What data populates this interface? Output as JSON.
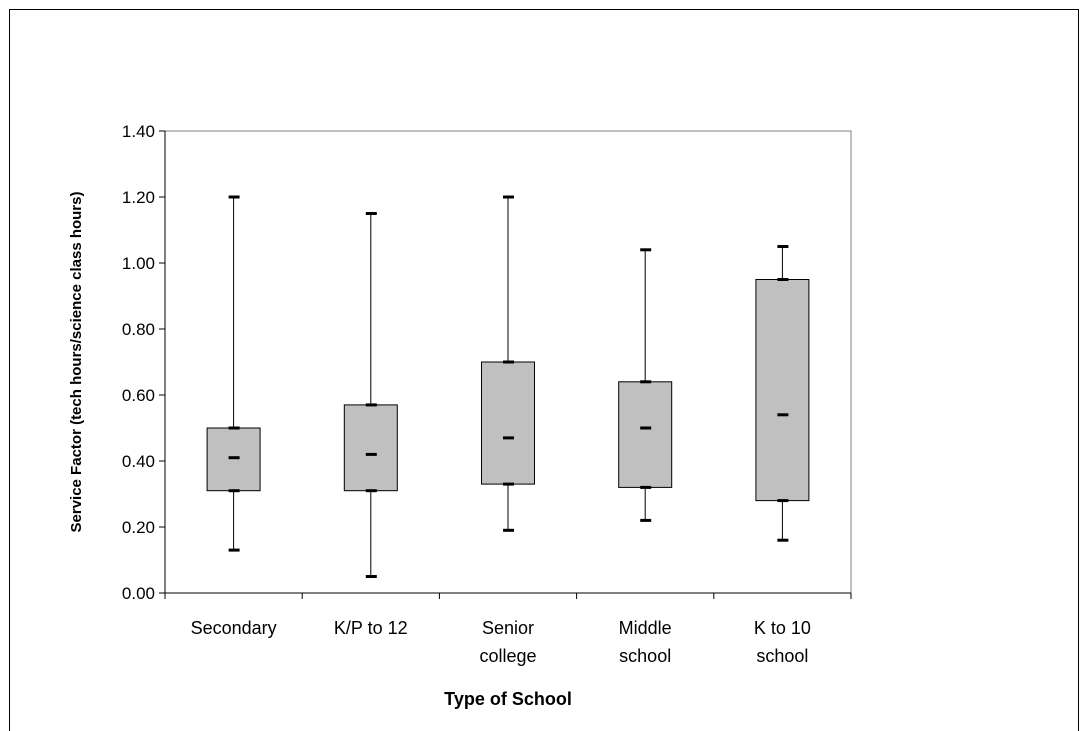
{
  "chart_data": {
    "type": "boxplot",
    "title": "",
    "xlabel": "Type of School",
    "ylabel": "Service Factor (tech hours/science class hours)",
    "ylim": [
      0,
      1.4
    ],
    "ytick_step": 0.2,
    "yticks": [
      "0.00",
      "0.20",
      "0.40",
      "0.60",
      "0.80",
      "1.00",
      "1.20",
      "1.40"
    ],
    "grid": false,
    "legend": "none",
    "box_color": "#c0c0c0",
    "categories": [
      [
        "Secondary"
      ],
      [
        "K/P to 12"
      ],
      [
        "Senior",
        "college"
      ],
      [
        "Middle",
        "school"
      ],
      [
        "K to 10",
        "school"
      ]
    ],
    "boxes": [
      {
        "min": 0.13,
        "q1": 0.31,
        "median": 0.41,
        "q3": 0.5,
        "max": 1.2
      },
      {
        "min": 0.05,
        "q1": 0.31,
        "median": 0.42,
        "q3": 0.57,
        "max": 1.15
      },
      {
        "min": 0.19,
        "q1": 0.33,
        "median": 0.47,
        "q3": 0.7,
        "max": 1.2
      },
      {
        "min": 0.22,
        "q1": 0.32,
        "median": 0.5,
        "q3": 0.64,
        "max": 1.04
      },
      {
        "min": 0.16,
        "q1": 0.28,
        "median": 0.54,
        "q3": 0.95,
        "max": 1.05
      }
    ]
  }
}
